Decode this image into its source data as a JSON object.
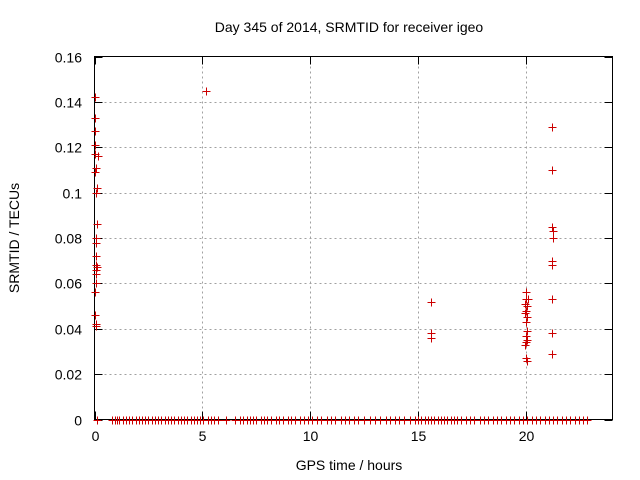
{
  "chart_data": {
    "type": "scatter",
    "title": "Day 345 of 2014, SRMTID for receiver igeo",
    "xlabel": "GPS time / hours",
    "ylabel": "SRMTID / TECUs",
    "xlim": [
      0,
      24.0
    ],
    "ylim": [
      0,
      0.16
    ],
    "xticks": [
      0,
      5,
      10,
      15,
      20
    ],
    "xtick_labels": [
      "0",
      "5",
      "10",
      "15",
      "20"
    ],
    "yticks": [
      0,
      0.02,
      0.04,
      0.06,
      0.08,
      0.1,
      0.12,
      0.14,
      0.16
    ],
    "ytick_labels": [
      "0",
      "0.02",
      "0.04",
      "0.06",
      "0.08",
      "0.1",
      "0.12",
      "0.14",
      "0.16"
    ],
    "grid": true,
    "marker": "+",
    "marker_color": "#cc0000",
    "series": [
      {
        "name": "SRMTID",
        "points": [
          [
            0.0,
            0.142
          ],
          [
            0.0,
            0.133
          ],
          [
            0.0,
            0.127
          ],
          [
            0.02,
            0.121
          ],
          [
            0.03,
            0.117
          ],
          [
            0.05,
            0.111
          ],
          [
            0.02,
            0.109
          ],
          [
            0.05,
            0.1
          ],
          [
            0.1,
            0.102
          ],
          [
            0.15,
            0.116
          ],
          [
            0.12,
            0.086
          ],
          [
            0.05,
            0.08
          ],
          [
            0.05,
            0.078
          ],
          [
            0.08,
            0.072
          ],
          [
            0.05,
            0.068
          ],
          [
            0.08,
            0.066
          ],
          [
            0.05,
            0.064
          ],
          [
            0.05,
            0.06
          ],
          [
            0.02,
            0.056
          ],
          [
            0.02,
            0.046
          ],
          [
            0.05,
            0.042
          ],
          [
            0.05,
            0.041
          ],
          [
            0.12,
            0.067
          ],
          [
            0.1,
            0.0
          ],
          [
            5.15,
            0.145
          ],
          [
            15.6,
            0.052
          ],
          [
            15.6,
            0.038
          ],
          [
            15.6,
            0.036
          ],
          [
            20.0,
            0.056
          ],
          [
            20.0,
            0.053
          ],
          [
            19.95,
            0.051
          ],
          [
            20.05,
            0.05
          ],
          [
            20.0,
            0.048
          ],
          [
            19.95,
            0.047
          ],
          [
            20.05,
            0.045
          ],
          [
            20.0,
            0.043
          ],
          [
            20.05,
            0.039
          ],
          [
            20.0,
            0.037
          ],
          [
            20.05,
            0.035
          ],
          [
            20.0,
            0.034
          ],
          [
            19.95,
            0.033
          ],
          [
            20.0,
            0.027
          ],
          [
            20.05,
            0.026
          ],
          [
            20.1,
            0.053
          ],
          [
            21.2,
            0.129
          ],
          [
            21.2,
            0.11
          ],
          [
            21.2,
            0.085
          ],
          [
            21.25,
            0.083
          ],
          [
            21.25,
            0.08
          ],
          [
            21.2,
            0.07
          ],
          [
            21.2,
            0.068
          ],
          [
            21.2,
            0.053
          ],
          [
            21.2,
            0.038
          ],
          [
            21.2,
            0.029
          ],
          [
            0.8,
            0.0
          ],
          [
            0.95,
            0.0
          ],
          [
            1.05,
            0.0
          ],
          [
            1.15,
            0.0
          ],
          [
            1.3,
            0.0
          ],
          [
            1.45,
            0.0
          ],
          [
            1.6,
            0.0
          ],
          [
            1.75,
            0.0
          ],
          [
            1.9,
            0.0
          ],
          [
            2.05,
            0.0
          ],
          [
            2.2,
            0.0
          ],
          [
            2.35,
            0.0
          ],
          [
            2.5,
            0.0
          ],
          [
            2.65,
            0.0
          ],
          [
            2.8,
            0.0
          ],
          [
            2.95,
            0.0
          ],
          [
            3.1,
            0.0
          ],
          [
            3.25,
            0.0
          ],
          [
            3.4,
            0.0
          ],
          [
            3.55,
            0.0
          ],
          [
            3.7,
            0.0
          ],
          [
            3.85,
            0.0
          ],
          [
            4.0,
            0.0
          ],
          [
            4.15,
            0.0
          ],
          [
            4.3,
            0.0
          ],
          [
            4.45,
            0.0
          ],
          [
            4.6,
            0.0
          ],
          [
            4.75,
            0.0
          ],
          [
            4.9,
            0.0
          ],
          [
            5.05,
            0.0
          ],
          [
            5.25,
            0.0
          ],
          [
            5.4,
            0.0
          ],
          [
            5.55,
            0.0
          ],
          [
            5.7,
            0.0
          ],
          [
            6.1,
            0.0
          ],
          [
            6.5,
            0.0
          ],
          [
            6.75,
            0.0
          ],
          [
            6.9,
            0.0
          ],
          [
            7.05,
            0.0
          ],
          [
            7.2,
            0.0
          ],
          [
            7.35,
            0.0
          ],
          [
            7.5,
            0.0
          ],
          [
            7.7,
            0.0
          ],
          [
            7.85,
            0.0
          ],
          [
            8.0,
            0.0
          ],
          [
            8.2,
            0.0
          ],
          [
            8.4,
            0.0
          ],
          [
            8.55,
            0.0
          ],
          [
            8.75,
            0.0
          ],
          [
            8.95,
            0.0
          ],
          [
            9.1,
            0.0
          ],
          [
            9.3,
            0.0
          ],
          [
            9.5,
            0.0
          ],
          [
            9.7,
            0.0
          ],
          [
            9.9,
            0.0
          ],
          [
            10.1,
            0.0
          ],
          [
            10.3,
            0.0
          ],
          [
            10.5,
            0.0
          ],
          [
            10.75,
            0.0
          ],
          [
            10.95,
            0.0
          ],
          [
            11.15,
            0.0
          ],
          [
            11.4,
            0.0
          ],
          [
            11.6,
            0.0
          ],
          [
            11.8,
            0.0
          ],
          [
            12.0,
            0.0
          ],
          [
            12.2,
            0.0
          ],
          [
            12.5,
            0.0
          ],
          [
            12.75,
            0.0
          ],
          [
            13.0,
            0.0
          ],
          [
            13.25,
            0.0
          ],
          [
            13.5,
            0.0
          ],
          [
            13.7,
            0.0
          ],
          [
            13.9,
            0.0
          ],
          [
            14.1,
            0.0
          ],
          [
            14.35,
            0.0
          ],
          [
            14.6,
            0.0
          ],
          [
            14.85,
            0.0
          ],
          [
            15.0,
            0.0
          ],
          [
            15.15,
            0.0
          ],
          [
            15.3,
            0.0
          ],
          [
            15.45,
            0.0
          ],
          [
            15.6,
            0.0
          ],
          [
            15.75,
            0.0
          ],
          [
            15.9,
            0.0
          ],
          [
            16.05,
            0.0
          ],
          [
            16.2,
            0.0
          ],
          [
            16.35,
            0.0
          ],
          [
            16.5,
            0.0
          ],
          [
            16.65,
            0.0
          ],
          [
            16.8,
            0.0
          ],
          [
            17.0,
            0.0
          ],
          [
            17.2,
            0.0
          ],
          [
            17.4,
            0.0
          ],
          [
            17.6,
            0.0
          ],
          [
            17.85,
            0.0
          ],
          [
            18.05,
            0.0
          ],
          [
            18.25,
            0.0
          ],
          [
            18.45,
            0.0
          ],
          [
            18.65,
            0.0
          ],
          [
            18.85,
            0.0
          ],
          [
            19.05,
            0.0
          ],
          [
            19.25,
            0.0
          ],
          [
            19.45,
            0.0
          ],
          [
            19.65,
            0.0
          ],
          [
            19.85,
            0.0
          ],
          [
            20.05,
            0.0
          ],
          [
            20.25,
            0.0
          ],
          [
            20.45,
            0.0
          ],
          [
            20.65,
            0.0
          ],
          [
            20.85,
            0.0
          ],
          [
            21.05,
            0.0
          ],
          [
            21.25,
            0.0
          ],
          [
            21.45,
            0.0
          ],
          [
            21.65,
            0.0
          ],
          [
            21.85,
            0.0
          ],
          [
            22.05,
            0.0
          ],
          [
            22.25,
            0.0
          ],
          [
            22.45,
            0.0
          ],
          [
            22.65,
            0.0
          ],
          [
            22.8,
            0.0
          ]
        ]
      }
    ]
  }
}
